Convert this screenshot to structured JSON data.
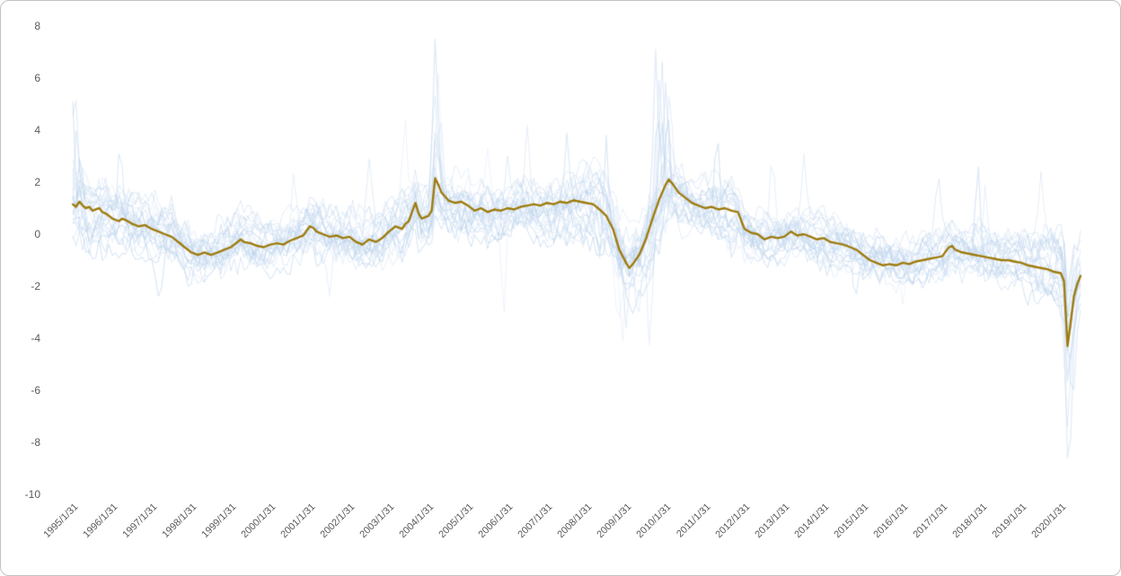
{
  "frame": {
    "background": "#ffffff",
    "border_color": "#c2c2c2"
  },
  "chart_data": {
    "type": "line",
    "title": "",
    "xlabel": "",
    "ylabel": "",
    "grid": false,
    "legend": "none",
    "ylim": [
      -10,
      8
    ],
    "x_range_years": [
      1995,
      2020.5
    ],
    "y_ticks": [
      8,
      6,
      4,
      2,
      0,
      -2,
      -4,
      -6,
      -8,
      -10
    ],
    "x_tick_labels": [
      "1995/1/31",
      "1996/1/31",
      "1997/1/31",
      "1998/1/31",
      "1999/1/31",
      "2000/1/31",
      "2001/1/31",
      "2002/1/31",
      "2003/1/31",
      "2004/1/31",
      "2005/1/31",
      "2006/1/31",
      "2007/1/31",
      "2008/1/31",
      "2009/1/31",
      "2010/1/31",
      "2011/1/31",
      "2012/1/31",
      "2013/1/31",
      "2014/1/31",
      "2015/1/31",
      "2016/1/31",
      "2017/1/31",
      "2018/1/31",
      "2019/1/31",
      "2020/1/31"
    ],
    "axis_label_color": "#595959",
    "main_series": {
      "name": "highlighted-composite-line",
      "color": "#9e7b0e",
      "width": 2.4,
      "points": [
        [
          1995.0,
          1.15
        ],
        [
          1995.08,
          1.05
        ],
        [
          1995.17,
          1.25
        ],
        [
          1995.25,
          1.1
        ],
        [
          1995.33,
          1.0
        ],
        [
          1995.42,
          1.05
        ],
        [
          1995.5,
          0.9
        ],
        [
          1995.58,
          0.95
        ],
        [
          1995.67,
          1.0
        ],
        [
          1995.75,
          0.85
        ],
        [
          1995.83,
          0.8
        ],
        [
          1995.92,
          0.7
        ],
        [
          1996.0,
          0.6
        ],
        [
          1996.17,
          0.5
        ],
        [
          1996.25,
          0.6
        ],
        [
          1996.33,
          0.55
        ],
        [
          1996.5,
          0.4
        ],
        [
          1996.67,
          0.3
        ],
        [
          1996.83,
          0.35
        ],
        [
          1997.0,
          0.2
        ],
        [
          1997.17,
          0.1
        ],
        [
          1997.33,
          0.0
        ],
        [
          1997.5,
          -0.1
        ],
        [
          1997.67,
          -0.3
        ],
        [
          1997.83,
          -0.5
        ],
        [
          1998.0,
          -0.7
        ],
        [
          1998.17,
          -0.8
        ],
        [
          1998.33,
          -0.7
        ],
        [
          1998.5,
          -0.8
        ],
        [
          1998.67,
          -0.7
        ],
        [
          1998.83,
          -0.6
        ],
        [
          1999.0,
          -0.5
        ],
        [
          1999.17,
          -0.3
        ],
        [
          1999.25,
          -0.2
        ],
        [
          1999.33,
          -0.3
        ],
        [
          1999.5,
          -0.35
        ],
        [
          1999.67,
          -0.45
        ],
        [
          1999.83,
          -0.5
        ],
        [
          2000.0,
          -0.4
        ],
        [
          2000.17,
          -0.35
        ],
        [
          2000.33,
          -0.4
        ],
        [
          2000.5,
          -0.25
        ],
        [
          2000.67,
          -0.15
        ],
        [
          2000.83,
          -0.05
        ],
        [
          2001.0,
          0.3
        ],
        [
          2001.08,
          0.25
        ],
        [
          2001.17,
          0.1
        ],
        [
          2001.33,
          0.0
        ],
        [
          2001.5,
          -0.1
        ],
        [
          2001.67,
          -0.05
        ],
        [
          2001.83,
          -0.15
        ],
        [
          2002.0,
          -0.1
        ],
        [
          2002.17,
          -0.3
        ],
        [
          2002.33,
          -0.4
        ],
        [
          2002.5,
          -0.2
        ],
        [
          2002.67,
          -0.3
        ],
        [
          2002.83,
          -0.15
        ],
        [
          2003.0,
          0.1
        ],
        [
          2003.17,
          0.3
        ],
        [
          2003.33,
          0.2
        ],
        [
          2003.42,
          0.4
        ],
        [
          2003.5,
          0.5
        ],
        [
          2003.67,
          1.2
        ],
        [
          2003.75,
          0.8
        ],
        [
          2003.83,
          0.6
        ],
        [
          2004.0,
          0.7
        ],
        [
          2004.08,
          0.9
        ],
        [
          2004.17,
          2.15
        ],
        [
          2004.25,
          1.9
        ],
        [
          2004.33,
          1.6
        ],
        [
          2004.42,
          1.45
        ],
        [
          2004.5,
          1.3
        ],
        [
          2004.67,
          1.2
        ],
        [
          2004.83,
          1.25
        ],
        [
          2005.0,
          1.1
        ],
        [
          2005.17,
          0.9
        ],
        [
          2005.33,
          1.0
        ],
        [
          2005.5,
          0.85
        ],
        [
          2005.67,
          0.95
        ],
        [
          2005.83,
          0.9
        ],
        [
          2006.0,
          1.0
        ],
        [
          2006.17,
          0.95
        ],
        [
          2006.33,
          1.05
        ],
        [
          2006.5,
          1.1
        ],
        [
          2006.67,
          1.15
        ],
        [
          2006.83,
          1.1
        ],
        [
          2007.0,
          1.2
        ],
        [
          2007.17,
          1.15
        ],
        [
          2007.33,
          1.25
        ],
        [
          2007.5,
          1.2
        ],
        [
          2007.67,
          1.3
        ],
        [
          2007.83,
          1.25
        ],
        [
          2008.0,
          1.2
        ],
        [
          2008.17,
          1.15
        ],
        [
          2008.33,
          0.95
        ],
        [
          2008.5,
          0.7
        ],
        [
          2008.67,
          0.2
        ],
        [
          2008.83,
          -0.6
        ],
        [
          2009.0,
          -1.1
        ],
        [
          2009.08,
          -1.3
        ],
        [
          2009.17,
          -1.15
        ],
        [
          2009.33,
          -0.8
        ],
        [
          2009.5,
          -0.2
        ],
        [
          2009.67,
          0.6
        ],
        [
          2009.83,
          1.3
        ],
        [
          2010.0,
          1.9
        ],
        [
          2010.08,
          2.1
        ],
        [
          2010.17,
          1.95
        ],
        [
          2010.33,
          1.6
        ],
        [
          2010.5,
          1.4
        ],
        [
          2010.67,
          1.2
        ],
        [
          2010.83,
          1.1
        ],
        [
          2011.0,
          1.0
        ],
        [
          2011.17,
          1.05
        ],
        [
          2011.33,
          0.95
        ],
        [
          2011.5,
          1.0
        ],
        [
          2011.67,
          0.9
        ],
        [
          2011.83,
          0.85
        ],
        [
          2012.0,
          0.2
        ],
        [
          2012.17,
          0.05
        ],
        [
          2012.33,
          0.0
        ],
        [
          2012.5,
          -0.2
        ],
        [
          2012.67,
          -0.1
        ],
        [
          2012.83,
          -0.15
        ],
        [
          2013.0,
          -0.1
        ],
        [
          2013.17,
          0.1
        ],
        [
          2013.33,
          -0.05
        ],
        [
          2013.5,
          0.0
        ],
        [
          2013.67,
          -0.1
        ],
        [
          2013.83,
          -0.2
        ],
        [
          2014.0,
          -0.15
        ],
        [
          2014.17,
          -0.3
        ],
        [
          2014.33,
          -0.35
        ],
        [
          2014.5,
          -0.4
        ],
        [
          2014.67,
          -0.5
        ],
        [
          2014.83,
          -0.6
        ],
        [
          2015.0,
          -0.8
        ],
        [
          2015.17,
          -1.0
        ],
        [
          2015.33,
          -1.1
        ],
        [
          2015.5,
          -1.2
        ],
        [
          2015.67,
          -1.15
        ],
        [
          2015.83,
          -1.2
        ],
        [
          2016.0,
          -1.1
        ],
        [
          2016.17,
          -1.15
        ],
        [
          2016.33,
          -1.05
        ],
        [
          2016.5,
          -1.0
        ],
        [
          2016.67,
          -0.95
        ],
        [
          2016.83,
          -0.9
        ],
        [
          2017.0,
          -0.85
        ],
        [
          2017.17,
          -0.5
        ],
        [
          2017.25,
          -0.45
        ],
        [
          2017.33,
          -0.6
        ],
        [
          2017.5,
          -0.7
        ],
        [
          2017.67,
          -0.75
        ],
        [
          2017.83,
          -0.8
        ],
        [
          2018.0,
          -0.85
        ],
        [
          2018.17,
          -0.9
        ],
        [
          2018.33,
          -0.95
        ],
        [
          2018.5,
          -1.0
        ],
        [
          2018.67,
          -1.0
        ],
        [
          2018.83,
          -1.05
        ],
        [
          2019.0,
          -1.1
        ],
        [
          2019.17,
          -1.2
        ],
        [
          2019.33,
          -1.25
        ],
        [
          2019.5,
          -1.3
        ],
        [
          2019.67,
          -1.35
        ],
        [
          2019.83,
          -1.45
        ],
        [
          2020.0,
          -1.5
        ],
        [
          2020.08,
          -1.8
        ],
        [
          2020.17,
          -4.3
        ],
        [
          2020.25,
          -3.4
        ],
        [
          2020.33,
          -2.4
        ],
        [
          2020.42,
          -1.9
        ],
        [
          2020.5,
          -1.6
        ]
      ]
    },
    "background_series": {
      "palette": [
        "#c9dcf2",
        "#b8d1ec",
        "#a8c6e6",
        "#d6e4f5"
      ],
      "spread_anchors": [
        [
          1995,
          1.1
        ],
        [
          1997,
          1.0
        ],
        [
          1999,
          0.85
        ],
        [
          2002,
          0.9
        ],
        [
          2004,
          1.05
        ],
        [
          2006,
          0.85
        ],
        [
          2008,
          1.1
        ],
        [
          2009.5,
          1.3
        ],
        [
          2010.5,
          1.0
        ],
        [
          2013,
          0.85
        ],
        [
          2016,
          0.8
        ],
        [
          2019,
          0.85
        ],
        [
          2020.2,
          1.3
        ],
        [
          2020.5,
          1.0
        ]
      ],
      "series": [
        {
          "seed": 11,
          "offset": 0.5,
          "scale": 1.0,
          "alpha": 0.5,
          "ci": 0,
          "lw": 1.2,
          "spikes": [
            [
              1995.05,
              5.6
            ],
            [
              2004.2,
              4.3
            ]
          ]
        },
        {
          "seed": 12,
          "offset": -0.4,
          "scale": 0.9,
          "alpha": 0.45,
          "ci": 1,
          "lw": 1.0,
          "spikes": [
            [
              1995.1,
              4.1
            ],
            [
              2009.9,
              6.8
            ],
            [
              2020.25,
              -4.8
            ]
          ]
        },
        {
          "seed": 13,
          "offset": 0.2,
          "scale": 1.1,
          "alpha": 0.4,
          "ci": 2,
          "lw": 1.2,
          "spikes": [
            [
              2004.17,
              7.5
            ],
            [
              2009.8,
              4.8
            ]
          ]
        },
        {
          "seed": 14,
          "offset": -0.2,
          "scale": 1.0,
          "alpha": 0.5,
          "ci": 0,
          "lw": 1.4,
          "spikes": [
            [
              2009.75,
              7.1
            ],
            [
              2010.0,
              5.8
            ],
            [
              2020.2,
              -9.2
            ]
          ]
        },
        {
          "seed": 15,
          "offset": 0.0,
          "scale": 0.8,
          "alpha": 0.45,
          "ci": 3,
          "lw": 1.0,
          "spikes": [
            [
              2005.9,
              -3.1
            ],
            [
              2008.9,
              -4.2
            ]
          ]
        },
        {
          "seed": 16,
          "offset": 0.6,
          "scale": 0.9,
          "alpha": 0.35,
          "ci": 1,
          "lw": 1.2,
          "spikes": [
            [
              2002.5,
              2.9
            ],
            [
              2009.0,
              -3.6
            ]
          ]
        },
        {
          "seed": 17,
          "offset": -0.6,
          "scale": 1.0,
          "alpha": 0.5,
          "ci": 2,
          "lw": 1.0,
          "spikes": [
            [
              1997.2,
              -2.6
            ],
            [
              2011.3,
              3.9
            ]
          ]
        },
        {
          "seed": 18,
          "offset": 0.3,
          "scale": 1.2,
          "alpha": 0.4,
          "ci": 0,
          "lw": 1.2,
          "spikes": [
            [
              2004.3,
              4.7
            ],
            [
              2013.5,
              3.1
            ]
          ]
        },
        {
          "seed": 19,
          "offset": -0.3,
          "scale": 0.9,
          "alpha": 0.45,
          "ci": 3,
          "lw": 1.0,
          "spikes": [
            [
              2008.8,
              -3.4
            ],
            [
              2016.0,
              -2.7
            ]
          ]
        },
        {
          "seed": 20,
          "offset": 0.1,
          "scale": 1.0,
          "alpha": 0.5,
          "ci": 1,
          "lw": 1.3,
          "spikes": [
            [
              2009.9,
              4.4
            ],
            [
              2017.9,
              2.7
            ]
          ]
        },
        {
          "seed": 21,
          "offset": -0.5,
          "scale": 1.1,
          "alpha": 0.4,
          "ci": 2,
          "lw": 1.0,
          "spikes": [
            [
              1996.2,
              3.4
            ],
            [
              2020.3,
              -6.4
            ]
          ]
        },
        {
          "seed": 22,
          "offset": 0.4,
          "scale": 0.8,
          "alpha": 0.45,
          "ci": 0,
          "lw": 1.1,
          "spikes": [
            [
              2006.5,
              4.2
            ],
            [
              2010.1,
              5.4
            ]
          ]
        },
        {
          "seed": 23,
          "offset": -0.1,
          "scale": 1.0,
          "alpha": 0.5,
          "ci": 3,
          "lw": 1.2,
          "spikes": [
            [
              2009.6,
              -4.4
            ],
            [
              2012.7,
              3.0
            ]
          ]
        },
        {
          "seed": 24,
          "offset": 0.7,
          "scale": 0.9,
          "alpha": 0.35,
          "ci": 1,
          "lw": 1.0,
          "spikes": [
            [
              2004.15,
              5.4
            ],
            [
              2019.5,
              2.4
            ]
          ]
        },
        {
          "seed": 25,
          "offset": -0.7,
          "scale": 1.0,
          "alpha": 0.4,
          "ci": 2,
          "lw": 1.2,
          "spikes": [
            [
              1995.0,
              5.1
            ],
            [
              2008.5,
              3.8
            ]
          ]
        },
        {
          "seed": 26,
          "offset": 0.0,
          "scale": 1.1,
          "alpha": 0.5,
          "ci": 0,
          "lw": 1.0,
          "spikes": [
            [
              2009.85,
              6.1
            ],
            [
              2020.17,
              -7.4
            ]
          ]
        },
        {
          "seed": 27,
          "offset": 0.25,
          "scale": 0.9,
          "alpha": 0.4,
          "ci": 3,
          "lw": 1.1,
          "spikes": [
            [
              2003.4,
              4.5
            ],
            [
              2005.5,
              3.3
            ]
          ]
        },
        {
          "seed": 28,
          "offset": -0.25,
          "scale": 1.0,
          "alpha": 0.45,
          "ci": 1,
          "lw": 1.2,
          "spikes": [
            [
              2007.5,
              3.9
            ],
            [
              2014.8,
              -2.5
            ]
          ]
        },
        {
          "seed": 29,
          "offset": 0.45,
          "scale": 1.05,
          "alpha": 0.35,
          "ci": 2,
          "lw": 1.0,
          "spikes": [
            [
              1998.3,
              -2.2
            ]
          ]
        },
        {
          "seed": 30,
          "offset": -0.45,
          "scale": 0.95,
          "alpha": 0.4,
          "ci": 0,
          "lw": 1.1,
          "spikes": [
            [
              2000.6,
              2.4
            ],
            [
              2009.3,
              -3.2
            ]
          ]
        },
        {
          "seed": 31,
          "offset": 0.15,
          "scale": 1.15,
          "alpha": 0.45,
          "ci": 3,
          "lw": 1.0,
          "spikes": [
            [
              2004.25,
              6.2
            ],
            [
              2020.2,
              -5.6
            ]
          ]
        },
        {
          "seed": 32,
          "offset": -0.15,
          "scale": 0.85,
          "alpha": 0.5,
          "ci": 1,
          "lw": 1.3,
          "spikes": [
            [
              1995.2,
              3.2
            ],
            [
              2010.05,
              4.9
            ]
          ]
        },
        {
          "seed": 33,
          "offset": 0.55,
          "scale": 1.0,
          "alpha": 0.35,
          "ci": 2,
          "lw": 1.0,
          "spikes": [
            [
              2006.0,
              3.0
            ],
            [
              2016.9,
              2.2
            ]
          ]
        },
        {
          "seed": 34,
          "offset": -0.55,
          "scale": 1.0,
          "alpha": 0.4,
          "ci": 0,
          "lw": 1.1,
          "spikes": [
            [
              2001.5,
              -2.4
            ],
            [
              2018.1,
              2.0
            ]
          ]
        }
      ]
    }
  }
}
